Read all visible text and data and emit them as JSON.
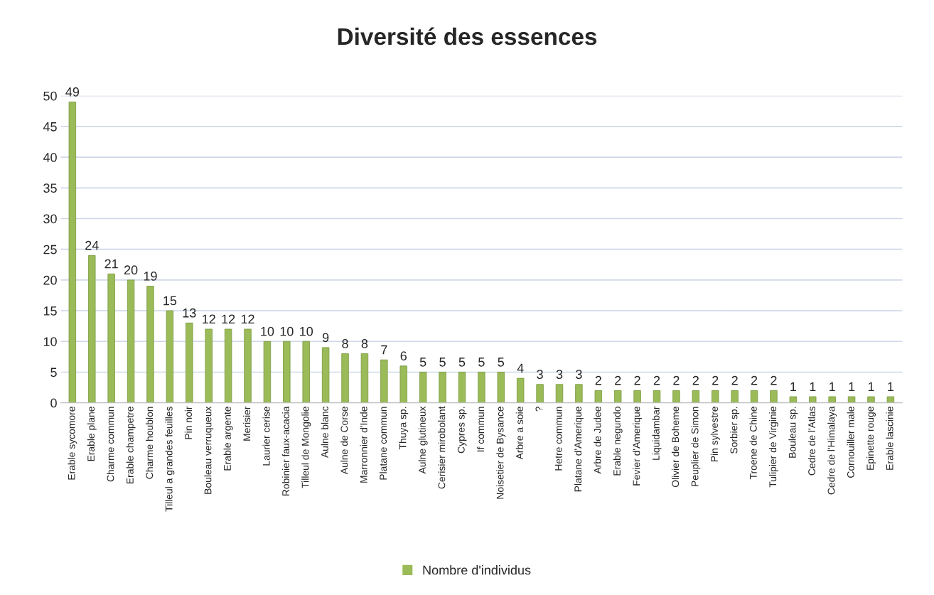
{
  "chart_data": {
    "type": "bar",
    "title": "Diversité des essences",
    "categories": [
      "Erable sycomore",
      "Erable plane",
      "Charme commun",
      "Erable champetre",
      "Charme houblon",
      "Tilleul a grandes feuilles",
      "Pin noir",
      "Bouleau verruqueux",
      "Erable argente",
      "Merisier",
      "Laurier cerise",
      "Robinier faux-acacia",
      "Tilleul de Mongolie",
      "Aulne blanc",
      "Aulne de Corse",
      "Marronnier d'Inde",
      "Platane commun",
      "Thuya sp.",
      "Aulne glutineux",
      "Cerisier mirobolant",
      "Cypres sp.",
      "If commun",
      "Noisetier de Bysance",
      "Arbre a soie",
      "?",
      "Hetre commun",
      "Platane d'Amerique",
      "Arbre de Judee",
      "Erable negundo",
      "Fevier d'Amerique",
      "Liquidambar",
      "Olivier de Boheme",
      "Peuplier de Simon",
      "Pin sylvestre",
      "Sorbier sp.",
      "Troene de Chine",
      "Tulipier de Virginie",
      "Bouleau sp.",
      "Cedre de l'Atlas",
      "Cedre de l'Himalaya",
      "Cornouiller male",
      "Epinette rouge",
      "Erable lascinie"
    ],
    "series": [
      {
        "name": "Nombre d'individus",
        "color": "#9bbb59",
        "values": [
          49,
          24,
          21,
          20,
          19,
          15,
          13,
          12,
          12,
          12,
          10,
          10,
          10,
          9,
          8,
          8,
          7,
          6,
          5,
          5,
          5,
          5,
          5,
          4,
          3,
          3,
          3,
          2,
          2,
          2,
          2,
          2,
          2,
          2,
          2,
          2,
          2,
          1,
          1,
          1,
          1,
          1,
          1
        ]
      }
    ],
    "ylim": [
      0,
      50
    ],
    "yticks": [
      0,
      5,
      10,
      15,
      20,
      25,
      30,
      35,
      40,
      45,
      50
    ],
    "data_labels": true,
    "grid": "y",
    "legend": "bottom"
  }
}
